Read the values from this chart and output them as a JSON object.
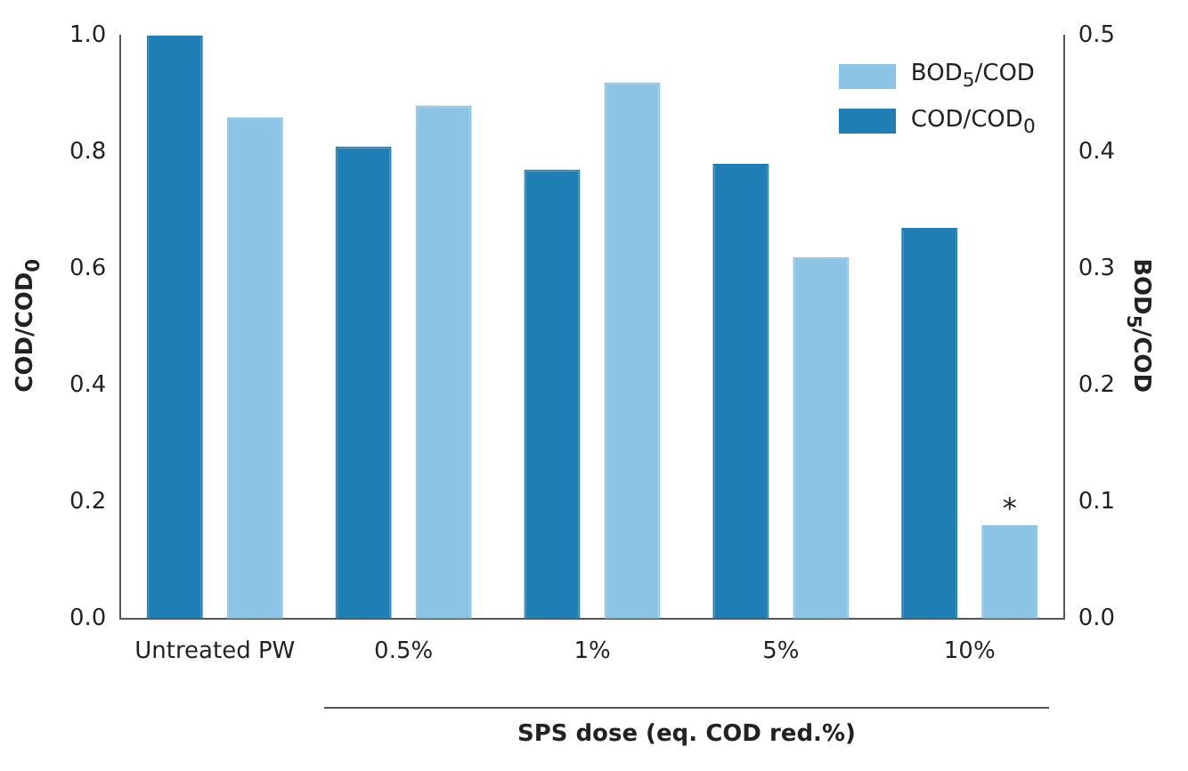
{
  "chart_data": {
    "type": "bar",
    "xlabel": "SPS dose (eq. COD red.%)",
    "ylabel": "COD/COD$_{0}$",
    "y2label": "BOD$_{5}$/COD",
    "categories": [
      "Untreated PW",
      "0.5%",
      "1%",
      "5%",
      "10%"
    ],
    "series": [
      {
        "name": "COD/COD$_{0}$",
        "color": "#1f7fb5",
        "values": [
          1.0,
          0.81,
          0.77,
          0.78,
          0.67
        ]
      },
      {
        "name": "BOD$_{5}$/COD",
        "color": "#8cc4e6",
        "axis": "y2",
        "values": [
          0.43,
          0.44,
          0.46,
          0.31,
          0.08
        ]
      }
    ],
    "ylim": [
      0,
      1.0
    ],
    "yticks": [
      {
        "value": 0,
        "label": "0.0"
      },
      {
        "value": 0.2,
        "label": "0.2"
      },
      {
        "value": 0.4,
        "label": "0.4"
      },
      {
        "value": 0.6,
        "label": "0.6"
      },
      {
        "value": 0.8,
        "label": "0.8"
      },
      {
        "value": 1.0,
        "label": "1.0"
      }
    ],
    "y2lim": [
      0,
      0.5
    ],
    "y2ticks": [
      {
        "value": 0,
        "label": "0.0"
      },
      {
        "value": 0.1,
        "label": "0.1"
      },
      {
        "value": 0.2,
        "label": "0.2"
      },
      {
        "value": 0.3,
        "label": "0.3"
      },
      {
        "value": 0.4,
        "label": "0.4"
      },
      {
        "value": 0.5,
        "label": "0.5"
      }
    ],
    "annotations": [
      "*"
    ],
    "grid": false,
    "legend": "top right"
  }
}
